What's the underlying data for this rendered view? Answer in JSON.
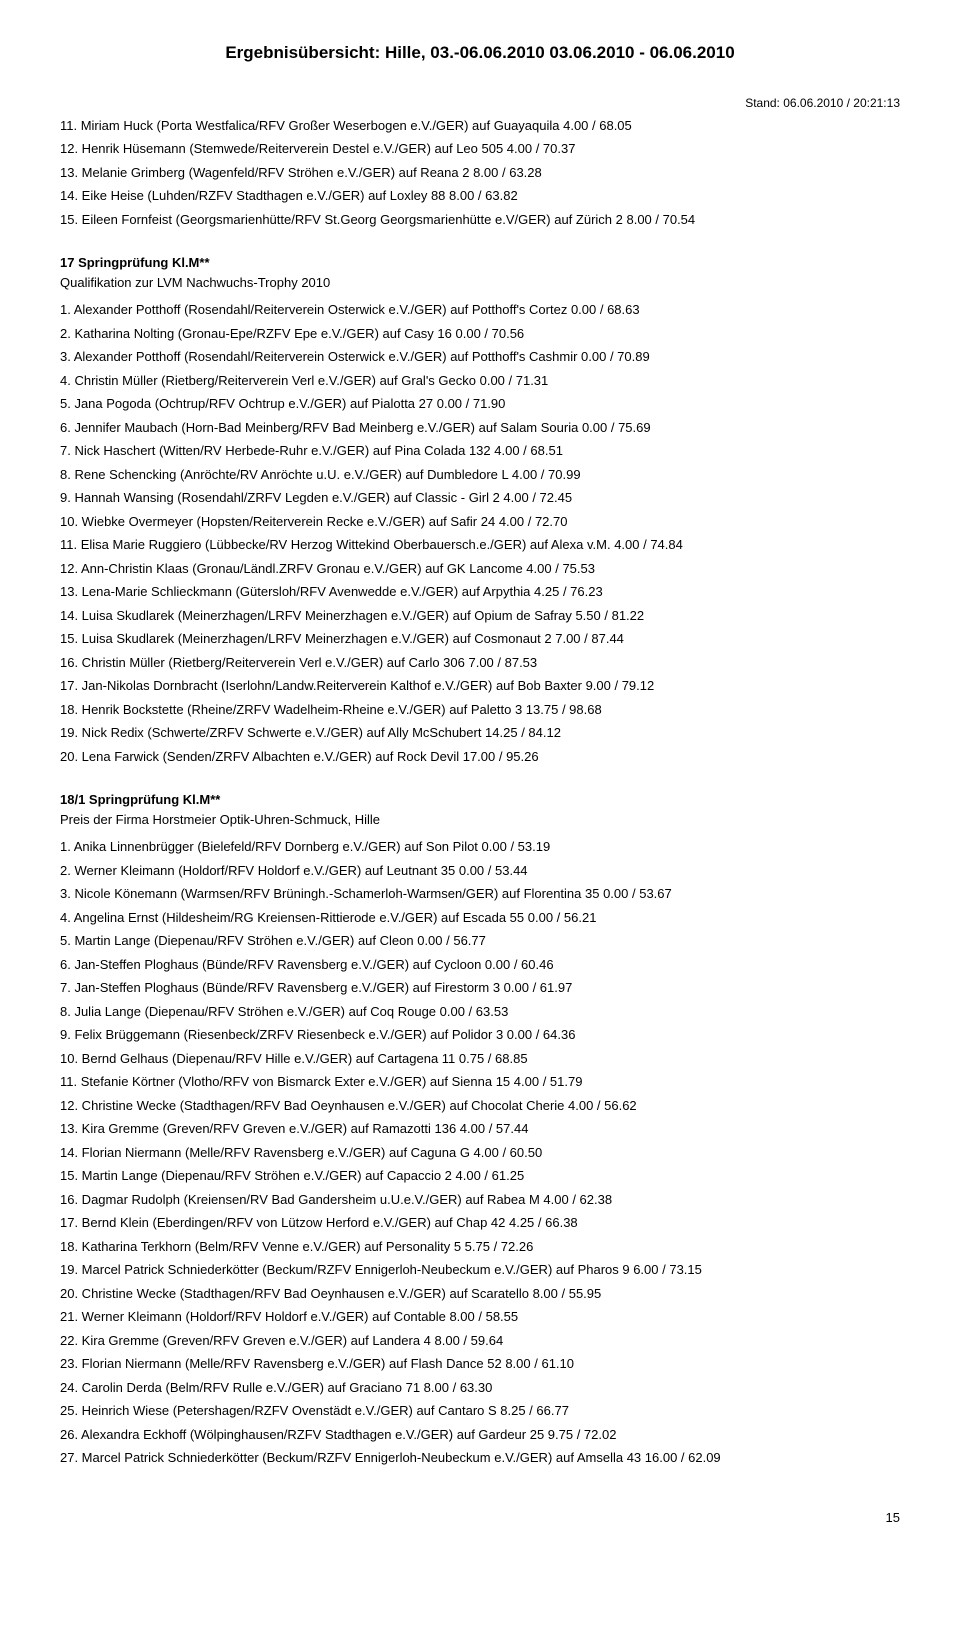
{
  "title": "Ergebnisübersicht: Hille, 03.-06.06.2010  03.06.2010 - 06.06.2010",
  "stand": "Stand: 06.06.2010 / 20:21:13",
  "page_num": "15",
  "section1": {
    "entries": [
      "11. Miriam Huck (Porta Westfalica/RFV Großer Weserbogen e.V./GER) auf Guayaquila 4.00 / 68.05",
      "12. Henrik Hüsemann (Stemwede/Reiterverein Destel e.V./GER) auf Leo 505 4.00 / 70.37",
      "13. Melanie Grimberg (Wagenfeld/RFV Ströhen e.V./GER) auf Reana 2 8.00 / 63.28",
      "14. Eike Heise (Luhden/RZFV Stadthagen e.V./GER) auf Loxley 88 8.00 / 63.82",
      "15. Eileen Fornfeist (Georgsmarienhütte/RFV St.Georg Georgsmarienhütte e.V/GER) auf Zürich 2 8.00 / 70.54"
    ]
  },
  "section2": {
    "header": "17 Springprüfung Kl.M**",
    "sub": "Qualifikation zur LVM Nachwuchs-Trophy 2010",
    "entries": [
      "1. Alexander Potthoff (Rosendahl/Reiterverein Osterwick e.V./GER) auf Potthoff's Cortez 0.00 / 68.63",
      "2. Katharina Nolting (Gronau-Epe/RZFV Epe e.V./GER) auf Casy 16 0.00 / 70.56",
      "3. Alexander Potthoff (Rosendahl/Reiterverein Osterwick e.V./GER) auf Potthoff's Cashmir 0.00 / 70.89",
      "4. Christin Müller (Rietberg/Reiterverein Verl e.V./GER) auf Gral's Gecko 0.00 / 71.31",
      "5. Jana Pogoda (Ochtrup/RFV Ochtrup e.V./GER) auf Pialotta 27 0.00 / 71.90",
      "6. Jennifer Maubach (Horn-Bad Meinberg/RFV Bad Meinberg e.V./GER) auf Salam Souria 0.00 / 75.69",
      "7. Nick Haschert (Witten/RV Herbede-Ruhr e.V./GER) auf Pina Colada 132 4.00 / 68.51",
      "8. Rene Schencking (Anröchte/RV Anröchte u.U. e.V./GER) auf Dumbledore L 4.00 / 70.99",
      "9. Hannah Wansing (Rosendahl/ZRFV Legden e.V./GER) auf Classic - Girl 2 4.00 / 72.45",
      "10. Wiebke Overmeyer (Hopsten/Reiterverein Recke e.V./GER) auf Safir 24 4.00 / 72.70",
      "11. Elisa Marie Ruggiero (Lübbecke/RV Herzog Wittekind Oberbauersch.e./GER) auf Alexa v.M. 4.00 / 74.84",
      "12. Ann-Christin Klaas (Gronau/Ländl.ZRFV Gronau e.V./GER) auf GK Lancome 4.00 / 75.53",
      "13. Lena-Marie Schlieckmann (Gütersloh/RFV Avenwedde e.V./GER) auf Arpythia 4.25 / 76.23",
      "14. Luisa Skudlarek (Meinerzhagen/LRFV Meinerzhagen e.V./GER) auf Opium de Safray 5.50 / 81.22",
      "15. Luisa Skudlarek (Meinerzhagen/LRFV Meinerzhagen e.V./GER) auf Cosmonaut 2 7.00 / 87.44",
      "16. Christin Müller (Rietberg/Reiterverein Verl e.V./GER) auf Carlo 306 7.00 / 87.53",
      "17. Jan-Nikolas Dornbracht (Iserlohn/Landw.Reiterverein Kalthof e.V./GER) auf Bob Baxter 9.00 / 79.12",
      "18. Henrik Bockstette (Rheine/ZRFV Wadelheim-Rheine e.V./GER) auf Paletto 3 13.75 / 98.68",
      "19. Nick Redix (Schwerte/ZRFV Schwerte e.V./GER) auf Ally McSchubert 14.25 / 84.12",
      "20. Lena Farwick (Senden/ZRFV Albachten e.V./GER) auf Rock Devil 17.00 / 95.26"
    ]
  },
  "section3": {
    "header": "18/1 Springprüfung Kl.M**",
    "sub": "Preis der Firma Horstmeier Optik-Uhren-Schmuck, Hille",
    "entries": [
      "1. Anika Linnenbrügger (Bielefeld/RFV Dornberg e.V./GER) auf Son Pilot 0.00 / 53.19",
      "2. Werner Kleimann (Holdorf/RFV Holdorf e.V./GER) auf Leutnant 35 0.00 / 53.44",
      "3. Nicole Könemann (Warmsen/RFV Brüningh.-Schamerloh-Warmsen/GER) auf Florentina 35 0.00 / 53.67",
      "4. Angelina Ernst (Hildesheim/RG Kreiensen-Rittierode e.V./GER) auf Escada 55 0.00 / 56.21",
      "5. Martin Lange (Diepenau/RFV Ströhen e.V./GER) auf Cleon 0.00 / 56.77",
      "6. Jan-Steffen Ploghaus (Bünde/RFV Ravensberg e.V./GER) auf Cycloon 0.00 / 60.46",
      "7. Jan-Steffen Ploghaus (Bünde/RFV Ravensberg e.V./GER) auf Firestorm 3 0.00 / 61.97",
      "8. Julia Lange (Diepenau/RFV Ströhen e.V./GER) auf Coq Rouge 0.00 / 63.53",
      "9. Felix Brüggemann (Riesenbeck/ZRFV Riesenbeck e.V./GER) auf Polidor 3 0.00 / 64.36",
      "10. Bernd Gelhaus (Diepenau/RFV Hille e.V./GER) auf Cartagena 11 0.75 / 68.85",
      "11. Stefanie Körtner (Vlotho/RFV von Bismarck Exter e.V./GER) auf Sienna 15 4.00 / 51.79",
      "12. Christine Wecke (Stadthagen/RFV Bad Oeynhausen e.V./GER) auf Chocolat Cherie 4.00 / 56.62",
      "13. Kira Gremme (Greven/RFV Greven e.V./GER) auf Ramazotti 136 4.00 / 57.44",
      "14. Florian Niermann (Melle/RFV Ravensberg e.V./GER) auf Caguna G 4.00 / 60.50",
      "15. Martin Lange (Diepenau/RFV Ströhen e.V./GER) auf Capaccio 2 4.00 / 61.25",
      "16. Dagmar Rudolph (Kreiensen/RV Bad Gandersheim u.U.e.V./GER) auf Rabea M 4.00 / 62.38",
      "17. Bernd Klein (Eberdingen/RFV von Lützow Herford e.V./GER) auf Chap 42 4.25 / 66.38",
      "18. Katharina Terkhorn (Belm/RFV Venne e.V./GER) auf Personality 5 5.75 / 72.26",
      "19. Marcel Patrick Schniederkötter (Beckum/RZFV Ennigerloh-Neubeckum e.V./GER) auf Pharos 9 6.00 / 73.15",
      "20. Christine Wecke (Stadthagen/RFV Bad Oeynhausen e.V./GER) auf Scaratello 8.00 / 55.95",
      "21. Werner Kleimann (Holdorf/RFV Holdorf e.V./GER) auf Contable 8.00 / 58.55",
      "22. Kira Gremme (Greven/RFV Greven e.V./GER) auf Landera 4 8.00 / 59.64",
      "23. Florian Niermann (Melle/RFV Ravensberg e.V./GER) auf Flash Dance 52 8.00 / 61.10",
      "24. Carolin Derda (Belm/RFV Rulle e.V./GER) auf Graciano 71 8.00 / 63.30",
      "25. Heinrich Wiese (Petershagen/RZFV Ovenstädt e.V./GER) auf Cantaro S 8.25 / 66.77",
      "26. Alexandra Eckhoff (Wölpinghausen/RZFV Stadthagen e.V./GER) auf Gardeur 25 9.75 / 72.02",
      "27. Marcel Patrick Schniederkötter (Beckum/RZFV Ennigerloh-Neubeckum e.V./GER) auf Amsella 43 16.00 / 62.09"
    ]
  }
}
